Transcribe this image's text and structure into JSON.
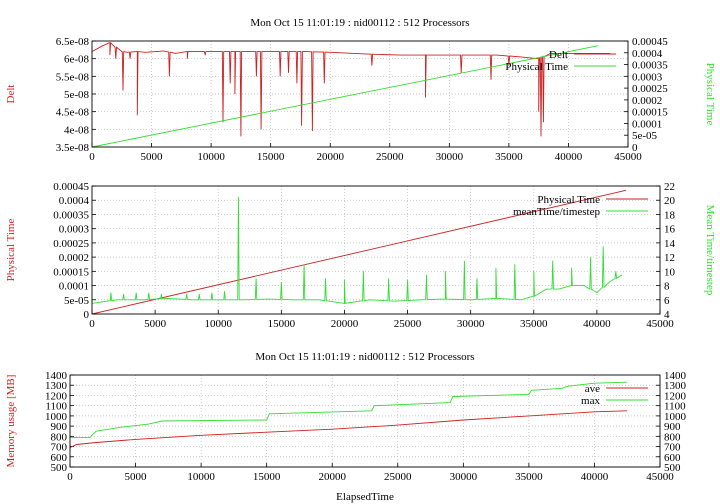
{
  "colors": {
    "red": "#cc2222",
    "green": "#33dd33",
    "grid": "#b8b8b8",
    "axis": "#000000"
  },
  "chart_data": [
    {
      "type": "line",
      "title": "Mon Oct 15 11:01:19 : nid00112 : 512 Processors",
      "ylabel": "Delt",
      "y2label": "Physical Time",
      "xlim": [
        0,
        45000
      ],
      "ylim": [
        3.5e-08,
        6.5e-08
      ],
      "y2lim": [
        0,
        0.00045
      ],
      "xticks": [
        "0",
        "5000",
        "10000",
        "15000",
        "20000",
        "25000",
        "30000",
        "35000",
        "40000",
        "45000"
      ],
      "yticks": [
        "3.5e-08",
        "4e-08",
        "4.5e-08",
        "5e-08",
        "5.5e-08",
        "6e-08",
        "6.5e-08"
      ],
      "y2ticks": [
        "0",
        "5e-05",
        "0.0001",
        "0.00015",
        "0.0002",
        "0.00025",
        "0.0003",
        "0.00035",
        "0.0004",
        "0.00045"
      ],
      "grid": true,
      "legend_position": "top-right",
      "series": [
        {
          "name": "Delt",
          "axis": "y",
          "color": "#cc2222",
          "x": [
            0,
            800,
            1500,
            2500,
            3000,
            3800,
            4500,
            6000,
            7000,
            8000,
            9000,
            10000,
            12000,
            14000,
            16000,
            18000,
            20000,
            22000,
            24000,
            26000,
            28000,
            30000,
            32000,
            34000,
            36000,
            37500,
            38500,
            40000,
            42000,
            43500
          ],
          "values": [
            6.2e-08,
            6.35e-08,
            6.45e-08,
            6.2e-08,
            6.18e-08,
            6.2e-08,
            6.18e-08,
            6.22e-08,
            6.15e-08,
            6.2e-08,
            6.2e-08,
            6.2e-08,
            6.2e-08,
            6.2e-08,
            6.2e-08,
            6.2e-08,
            6.18e-08,
            6.15e-08,
            6.12e-08,
            6.1e-08,
            6.1e-08,
            6.1e-08,
            6.1e-08,
            6.1e-08,
            6.05e-08,
            6e-08,
            6.15e-08,
            6.15e-08,
            6.15e-08,
            6.15e-08
          ],
          "spikes": [
            {
              "x": 1500,
              "min": 6.1e-08
            },
            {
              "x": 2000,
              "min": 6e-08
            },
            {
              "x": 2600,
              "min": 5.1e-08
            },
            {
              "x": 3200,
              "min": 6e-08
            },
            {
              "x": 3800,
              "min": 4.4e-08
            },
            {
              "x": 5500,
              "min": 6.2e-08
            },
            {
              "x": 6500,
              "min": 5.5e-08
            },
            {
              "x": 8000,
              "min": 6e-08
            },
            {
              "x": 9500,
              "min": 6.1e-08
            },
            {
              "x": 11000,
              "min": 4.2e-08
            },
            {
              "x": 11600,
              "min": 5.3e-08
            },
            {
              "x": 12000,
              "min": 5e-08
            },
            {
              "x": 12500,
              "min": 3.8e-08
            },
            {
              "x": 13800,
              "min": 5.5e-08
            },
            {
              "x": 14200,
              "min": 4e-08
            },
            {
              "x": 15800,
              "min": 5.5e-08
            },
            {
              "x": 16500,
              "min": 5.6e-08
            },
            {
              "x": 17200,
              "min": 5.3e-08
            },
            {
              "x": 17600,
              "min": 4.1e-08
            },
            {
              "x": 18500,
              "min": 3.95e-08
            },
            {
              "x": 19500,
              "min": 5.3e-08
            },
            {
              "x": 23500,
              "min": 5.8e-08
            },
            {
              "x": 28000,
              "min": 4.9e-08
            },
            {
              "x": 31000,
              "min": 5.6e-08
            },
            {
              "x": 33500,
              "min": 5.4e-08
            },
            {
              "x": 35000,
              "min": 5.8e-08
            },
            {
              "x": 37500,
              "min": 4.5e-08
            },
            {
              "x": 37700,
              "min": 3.8e-08
            },
            {
              "x": 37900,
              "min": 4.2e-08
            }
          ]
        },
        {
          "name": "Physical Time",
          "axis": "y2",
          "color": "#33dd33",
          "x": [
            0,
            42500
          ],
          "values": [
            0,
            0.00043
          ]
        }
      ]
    },
    {
      "type": "line",
      "title": "",
      "ylabel": "Physical Time",
      "y2label": "Mean Time/timestep",
      "xlim": [
        0,
        45000
      ],
      "ylim": [
        0,
        0.00045
      ],
      "y2lim": [
        4,
        22
      ],
      "xticks": [
        "0",
        "5000",
        "10000",
        "15000",
        "20000",
        "25000",
        "30000",
        "35000",
        "40000",
        "45000"
      ],
      "yticks": [
        "0",
        "5e-05",
        "0.0001",
        "0.00015",
        "0.0002",
        "0.00025",
        "0.0003",
        "0.00035",
        "0.0004",
        "0.00045"
      ],
      "y2ticks": [
        "4",
        "6",
        "8",
        "10",
        "12",
        "14",
        "16",
        "18",
        "20",
        "22"
      ],
      "grid": true,
      "legend_position": "top-right",
      "series": [
        {
          "name": "Physical Time",
          "axis": "y",
          "color": "#cc2222",
          "x": [
            0,
            42300
          ],
          "values": [
            0,
            0.000435
          ]
        },
        {
          "name": "meanTime/timestep",
          "axis": "y2",
          "color": "#33dd33",
          "x": [
            0,
            2000,
            4000,
            6000,
            8000,
            10000,
            12000,
            14000,
            16000,
            18000,
            20000,
            22000,
            24000,
            26000,
            28000,
            30000,
            32000,
            34000,
            35000,
            36000,
            37000,
            38000,
            39000,
            40000,
            41000,
            42000
          ],
          "values": [
            5.5,
            6.0,
            6.0,
            6.2,
            6.0,
            6.0,
            6.0,
            6.1,
            6.0,
            6.0,
            5.5,
            6.0,
            5.8,
            6.0,
            6.1,
            6.0,
            6.2,
            6.0,
            6.5,
            7.5,
            7.5,
            8.0,
            8.0,
            7.0,
            8.5,
            9.5
          ],
          "spikes": [
            {
              "x": 1500,
              "peak": 7.0
            },
            {
              "x": 2500,
              "peak": 6.8
            },
            {
              "x": 3500,
              "peak": 7.0
            },
            {
              "x": 4500,
              "peak": 7.0
            },
            {
              "x": 5500,
              "peak": 6.8
            },
            {
              "x": 7500,
              "peak": 6.8
            },
            {
              "x": 8500,
              "peak": 6.8
            },
            {
              "x": 9500,
              "peak": 7.0
            },
            {
              "x": 10500,
              "peak": 7.2
            },
            {
              "x": 11600,
              "peak": 20.5
            },
            {
              "x": 13000,
              "peak": 9.0
            },
            {
              "x": 15000,
              "peak": 8.5
            },
            {
              "x": 16800,
              "peak": 11.0
            },
            {
              "x": 18500,
              "peak": 9.0
            },
            {
              "x": 20000,
              "peak": 8.8
            },
            {
              "x": 21500,
              "peak": 10.0
            },
            {
              "x": 23500,
              "peak": 9.0
            },
            {
              "x": 25000,
              "peak": 8.8
            },
            {
              "x": 26500,
              "peak": 9.5
            },
            {
              "x": 28000,
              "peak": 10.0
            },
            {
              "x": 29500,
              "peak": 11.5
            },
            {
              "x": 30500,
              "peak": 9.0
            },
            {
              "x": 32000,
              "peak": 10.5
            },
            {
              "x": 33500,
              "peak": 11.0
            },
            {
              "x": 35000,
              "peak": 10.0
            },
            {
              "x": 36500,
              "peak": 11.5
            },
            {
              "x": 38000,
              "peak": 10.5
            },
            {
              "x": 39500,
              "peak": 12.0
            },
            {
              "x": 40500,
              "peak": 13.5
            },
            {
              "x": 41500,
              "peak": 10.0
            }
          ]
        }
      ]
    },
    {
      "type": "line",
      "title": "Mon Oct 15 11:01:19 : nid00112 : 512 Processors",
      "xlabel": "ElapsedTime",
      "ylabel": "Memory usage [MB]",
      "xlim": [
        0,
        45000
      ],
      "ylim": [
        500,
        1400
      ],
      "y2lim": [
        500,
        1400
      ],
      "xticks": [
        "0",
        "5000",
        "10000",
        "15000",
        "20000",
        "25000",
        "30000",
        "35000",
        "40000",
        "45000"
      ],
      "yticks": [
        "500",
        "600",
        "700",
        "800",
        "900",
        "1000",
        "1100",
        "1200",
        "1300",
        "1400"
      ],
      "y2ticks": [
        "500",
        "600",
        "700",
        "800",
        "900",
        "1000",
        "1100",
        "1200",
        "1300",
        "1400"
      ],
      "grid": true,
      "legend_position": "top-right",
      "series": [
        {
          "name": "ave",
          "axis": "y",
          "color": "#cc2222",
          "x": [
            0,
            500,
            2000,
            5000,
            10000,
            15000,
            20000,
            25000,
            30000,
            35000,
            40000,
            42500
          ],
          "values": [
            690,
            720,
            740,
            770,
            810,
            840,
            870,
            910,
            960,
            1000,
            1040,
            1050
          ]
        },
        {
          "name": "max",
          "axis": "y",
          "color": "#33dd33",
          "x": [
            0,
            1500,
            2000,
            4000,
            6000,
            7000,
            15000,
            15200,
            23000,
            23200,
            29000,
            29200,
            35000,
            35200,
            37500,
            38000,
            40000,
            42500
          ],
          "values": [
            790,
            790,
            850,
            890,
            920,
            950,
            960,
            1020,
            1050,
            1100,
            1130,
            1190,
            1210,
            1250,
            1270,
            1290,
            1320,
            1330
          ]
        }
      ]
    }
  ]
}
